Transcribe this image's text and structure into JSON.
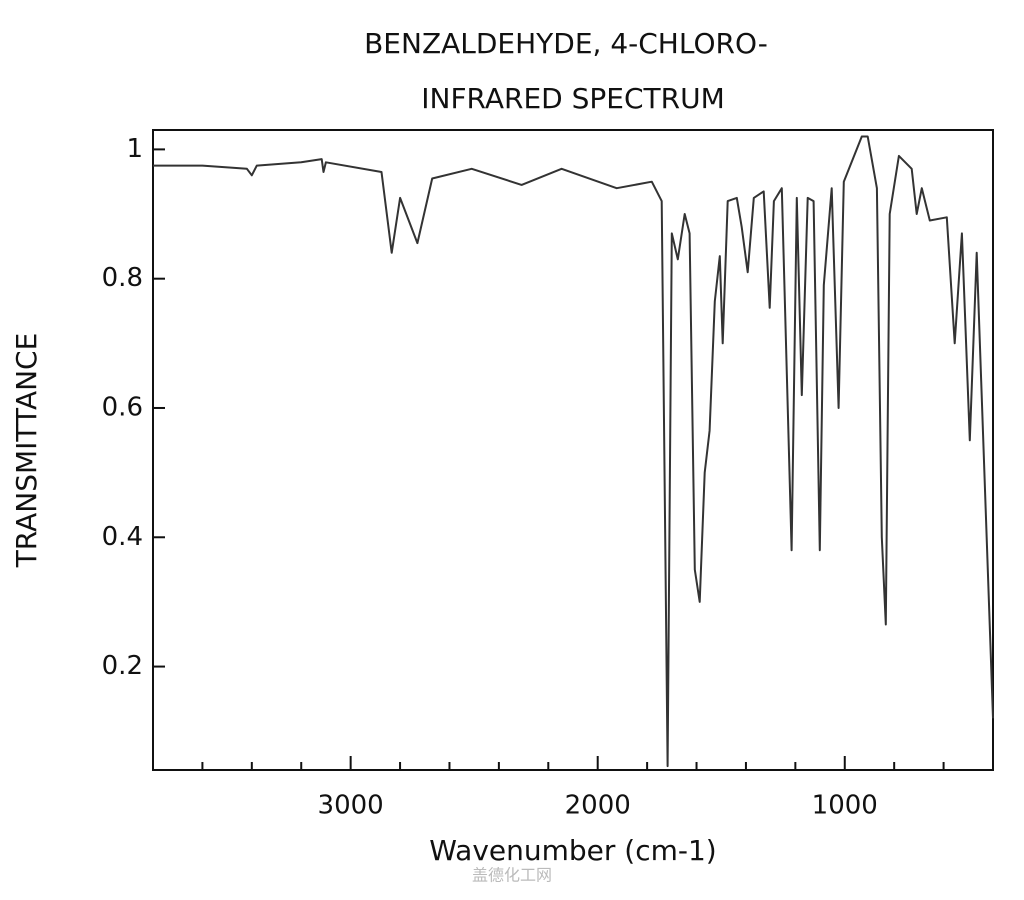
{
  "chart_data": {
    "type": "line",
    "title": "BENZALDEHYDE, 4-CHLORO-",
    "subtitle": "INFRARED SPECTRUM",
    "x_label": "Wavenumber (cm-1)",
    "y_label": "TRANSMITTANCE",
    "watermark": "盖德化工网",
    "color": "#333333",
    "xlim": [
      3800,
      400
    ],
    "ylim": [
      0.04,
      1.03
    ],
    "xticks": [
      3000,
      2000,
      1000
    ],
    "x_minor_ticks": [
      3600,
      3400,
      3200,
      2800,
      2600,
      2400,
      2200,
      1800,
      1600,
      1400,
      1200,
      800,
      600
    ],
    "yticks": [
      0.2,
      0.4,
      0.6,
      0.8,
      1
    ],
    "x": [
      3800,
      3600,
      3420,
      3400,
      3380,
      3200,
      3117,
      3110,
      3100,
      2875,
      2834,
      2800,
      2730,
      2670,
      2510,
      2308,
      2146,
      1923,
      1781,
      1741,
      1717,
      1700,
      1676,
      1648,
      1628,
      1607,
      1587,
      1567,
      1547,
      1526,
      1506,
      1494,
      1474,
      1437,
      1417,
      1393,
      1368,
      1328,
      1304,
      1287,
      1255,
      1215,
      1194,
      1174,
      1150,
      1126,
      1101,
      1085,
      1053,
      1025,
      1004,
      931,
      907,
      870,
      850,
      834,
      818,
      781,
      729,
      709,
      688,
      656,
      587,
      555,
      526,
      494,
      466,
      400
    ],
    "values": [
      0.975,
      0.975,
      0.97,
      0.96,
      0.975,
      0.98,
      0.985,
      0.965,
      0.98,
      0.965,
      0.84,
      0.925,
      0.855,
      0.955,
      0.97,
      0.945,
      0.97,
      0.94,
      0.95,
      0.92,
      0.046,
      0.87,
      0.83,
      0.9,
      0.87,
      0.35,
      0.3,
      0.5,
      0.565,
      0.765,
      0.835,
      0.7,
      0.92,
      0.925,
      0.88,
      0.81,
      0.925,
      0.935,
      0.755,
      0.92,
      0.94,
      0.38,
      0.925,
      0.62,
      0.925,
      0.92,
      0.38,
      0.79,
      0.94,
      0.6,
      0.95,
      1.02,
      1.02,
      0.94,
      0.4,
      0.265,
      0.9,
      0.99,
      0.97,
      0.9,
      0.94,
      0.89,
      0.895,
      0.7,
      0.87,
      0.55,
      0.84,
      0.12
    ]
  }
}
